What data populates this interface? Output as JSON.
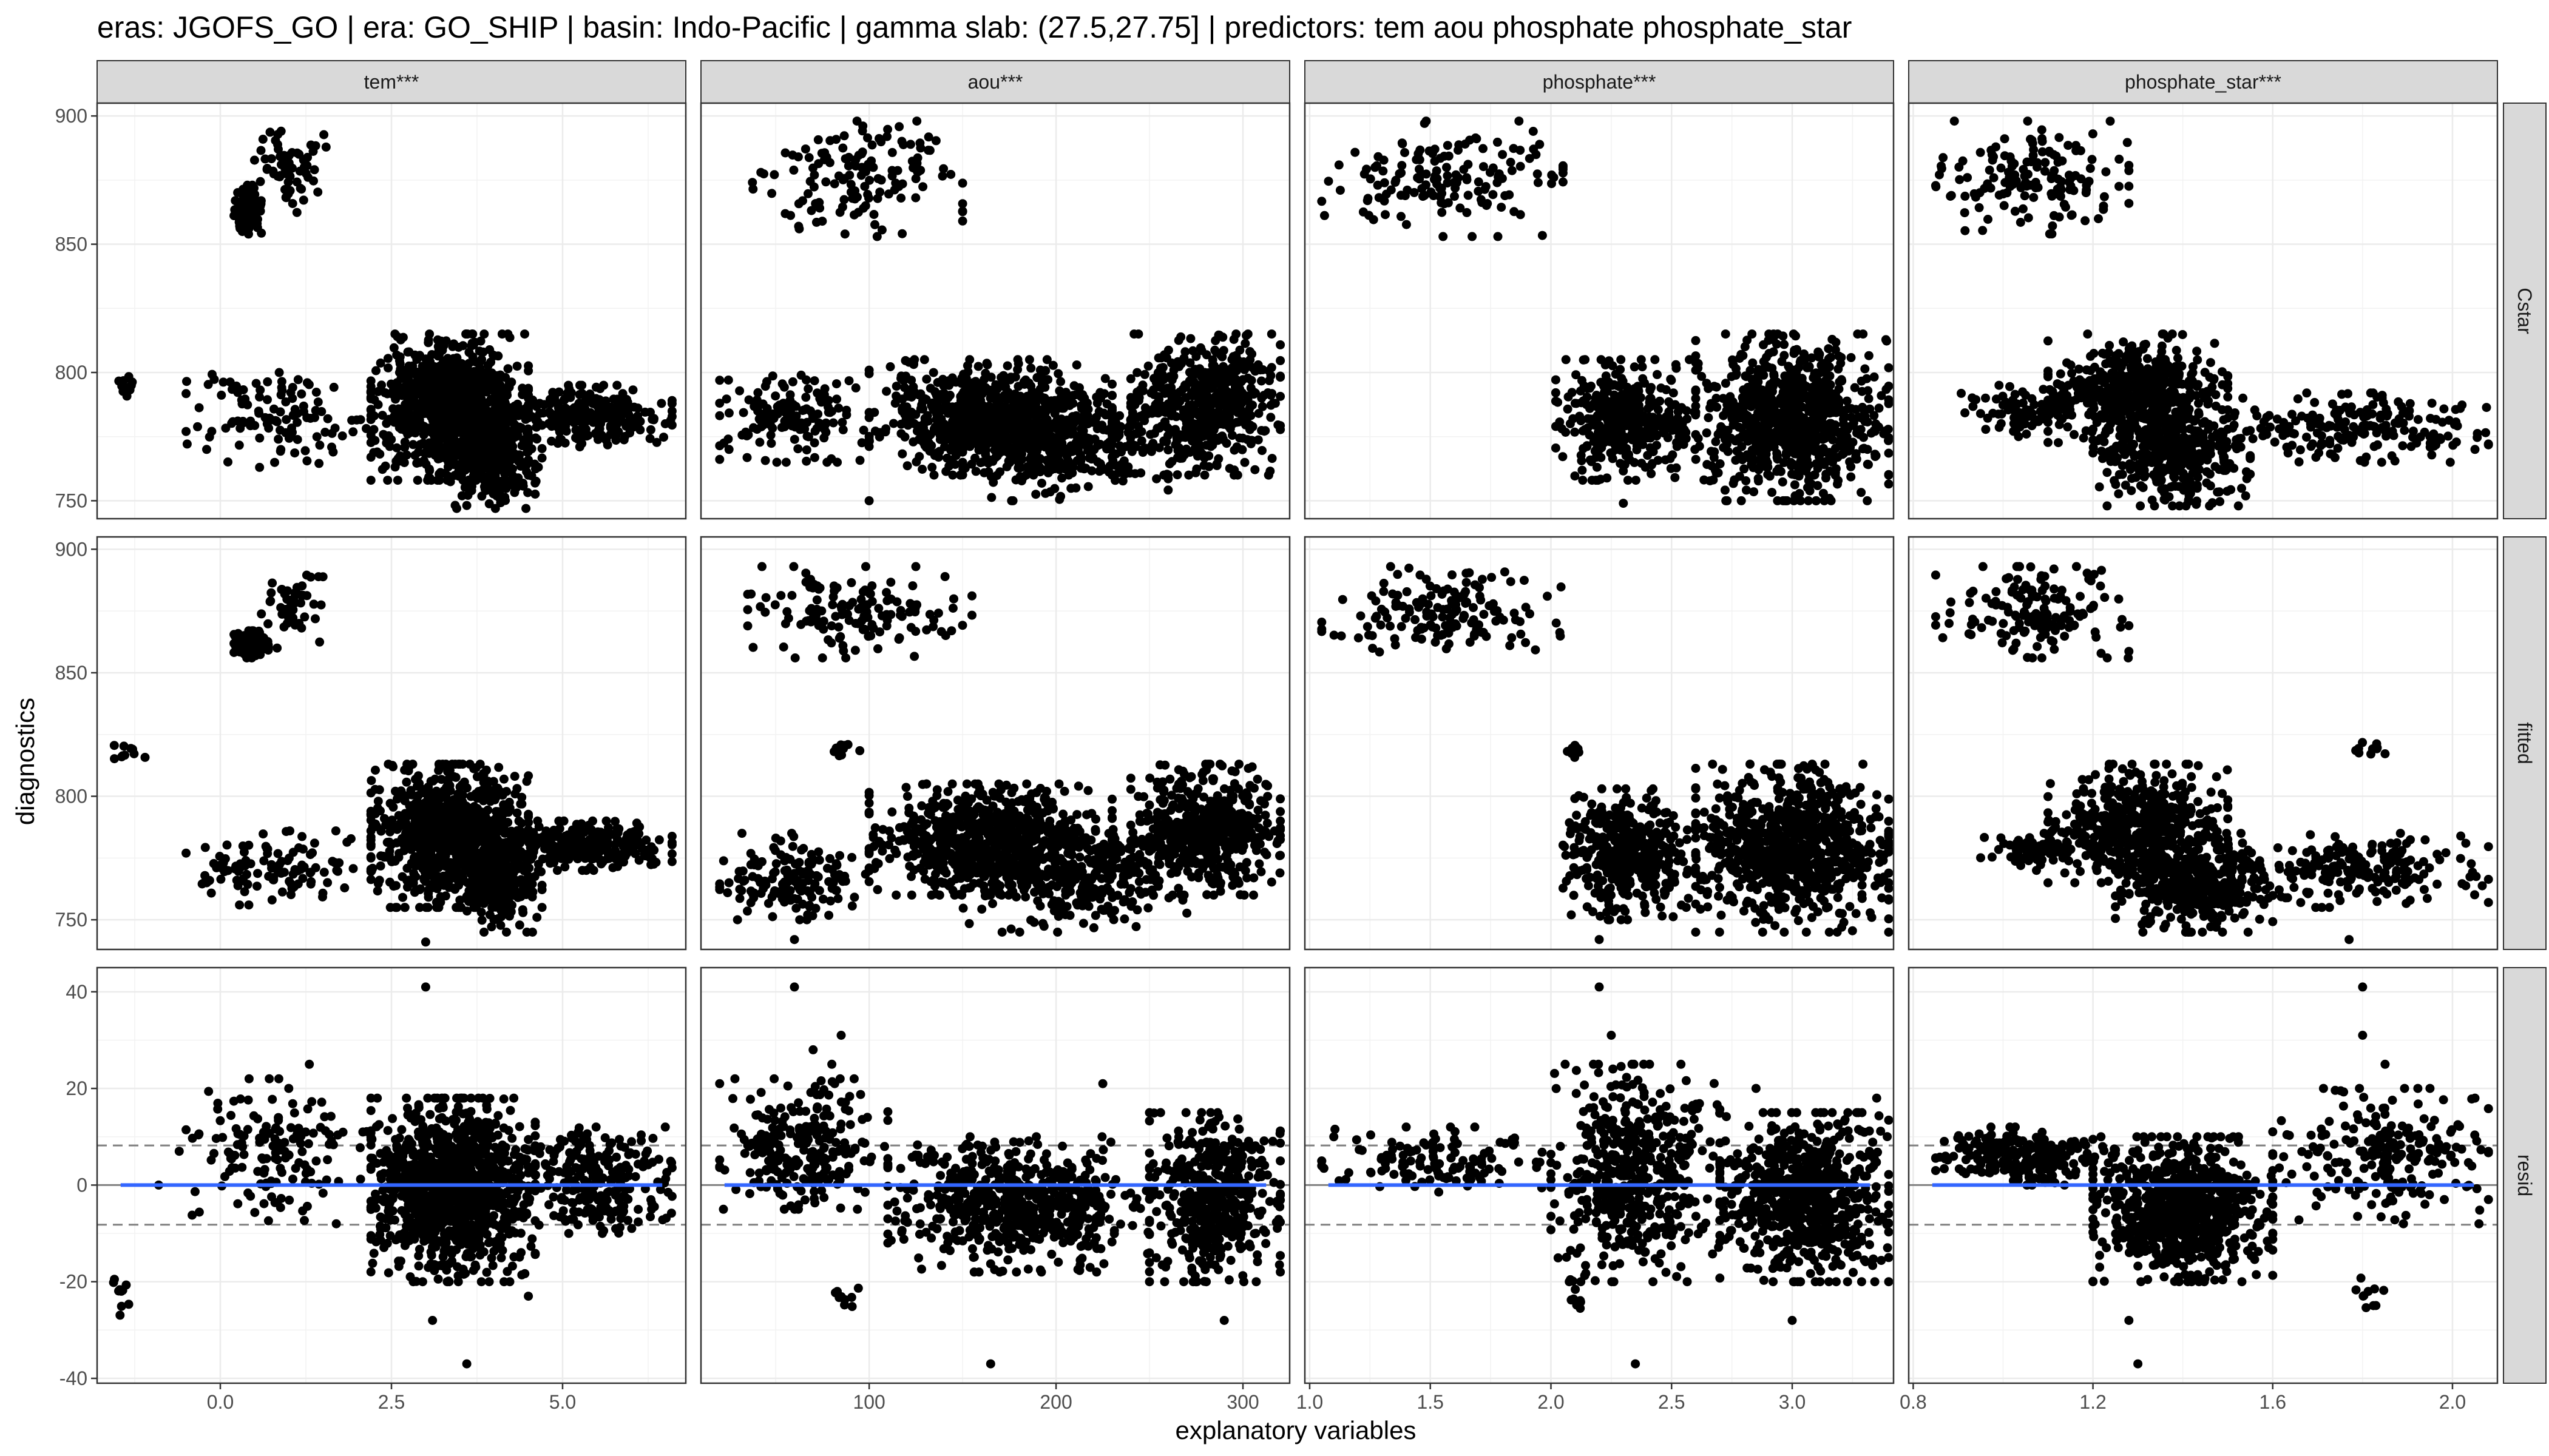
{
  "chart_data": {
    "type": "scatter",
    "title": "eras: JGOFS_GO | era: GO_SHIP | basin: Indo-Pacific | gamma slab: (27.5,27.75] | predictors: tem aou phosphate phosphate_star",
    "xlabel": "explanatory variables",
    "ylabel": "diagnostics",
    "grid": true,
    "legend": "none",
    "point_color": "#000000",
    "smooth_line_color": "#3366FF",
    "reference_line_color": "#808080",
    "columns": [
      {
        "label": "tem***",
        "xlim": [
          -1.8,
          6.8
        ],
        "ticks": [
          0.0,
          2.5,
          5.0
        ],
        "tick_labels": [
          "0.0",
          "2.5",
          "5.0"
        ]
      },
      {
        "label": "aou***",
        "xlim": [
          10,
          325
        ],
        "ticks": [
          100,
          200,
          300
        ],
        "tick_labels": [
          "100",
          "200",
          "300"
        ]
      },
      {
        "label": "phosphate***",
        "xlim": [
          0.98,
          3.42
        ],
        "ticks": [
          1.0,
          1.5,
          2.0,
          2.5,
          3.0
        ],
        "tick_labels": [
          "1.0",
          "1.5",
          "2.0",
          "2.5",
          "3.0"
        ]
      },
      {
        "label": "phosphate_star***",
        "xlim": [
          0.79,
          2.1
        ],
        "ticks": [
          0.8,
          1.2,
          1.6,
          2.0
        ],
        "tick_labels": [
          "0.8",
          "1.2",
          "1.6",
          "2.0"
        ]
      }
    ],
    "rows": [
      {
        "label": "Cstar",
        "ylim": [
          743,
          905
        ],
        "ticks": [
          750,
          800,
          850,
          900
        ],
        "tick_labels": [
          "750",
          "800",
          "850",
          "900"
        ]
      },
      {
        "label": "fitted",
        "ylim": [
          738,
          905
        ],
        "ticks": [
          750,
          800,
          850,
          900
        ],
        "tick_labels": [
          "750",
          "800",
          "850",
          "900"
        ]
      },
      {
        "label": "resid",
        "ylim": [
          -41,
          45
        ],
        "ticks": [
          -40,
          -20,
          0,
          20,
          40
        ],
        "tick_labels": [
          "-40",
          "-20",
          "0",
          "20",
          "40"
        ],
        "reference_lines": [
          -8.2,
          0,
          8.2
        ]
      }
    ],
    "panels": [
      {
        "col": "tem***",
        "row": "Cstar",
        "clusters": [
          {
            "x": [
              0.2,
              0.6
            ],
            "y": [
              853,
              873
            ],
            "n": 150
          },
          {
            "x": [
              0.5,
              1.6
            ],
            "y": [
              860,
              897
            ],
            "n": 60
          },
          {
            "x": [
              -1.6,
              -1.1
            ],
            "y": [
              790,
              799
            ],
            "n": 12
          },
          {
            "x": [
              -0.5,
              2.2
            ],
            "y": [
              763,
              800
            ],
            "n": 110
          },
          {
            "x": [
              2.2,
              4.5
            ],
            "y": [
              758,
              815
            ],
            "n": 900
          },
          {
            "x": [
              3.3,
              4.7
            ],
            "y": [
              747,
              790
            ],
            "n": 250
          },
          {
            "x": [
              4.3,
              6.6
            ],
            "y": [
              771,
              795
            ],
            "n": 260
          }
        ]
      },
      {
        "col": "aou***",
        "row": "Cstar",
        "clusters": [
          {
            "x": [
              35,
              150
            ],
            "y": [
              853,
              898
            ],
            "n": 140
          },
          {
            "x": [
              20,
              100
            ],
            "y": [
              765,
              800
            ],
            "n": 150
          },
          {
            "x": [
              100,
              230
            ],
            "y": [
              760,
              805
            ],
            "n": 700
          },
          {
            "x": [
              150,
              260
            ],
            "y": [
              750,
              790
            ],
            "n": 300
          },
          {
            "x": [
              240,
              320
            ],
            "y": [
              760,
              815
            ],
            "n": 500
          }
        ]
      },
      {
        "col": "phosphate***",
        "row": "Cstar",
        "clusters": [
          {
            "x": [
              1.05,
              2.05
            ],
            "y": [
              853,
              898
            ],
            "n": 150
          },
          {
            "x": [
              2.02,
              2.6
            ],
            "y": [
              758,
              805
            ],
            "n": 400
          },
          {
            "x": [
              2.6,
              3.4
            ],
            "y": [
              750,
              815
            ],
            "n": 800
          }
        ]
      },
      {
        "col": "phosphate_star***",
        "row": "Cstar",
        "clusters": [
          {
            "x": [
              0.85,
              1.28
            ],
            "y": [
              854,
              898
            ],
            "n": 150
          },
          {
            "x": [
              1.1,
              1.5
            ],
            "y": [
              768,
              815
            ],
            "n": 500
          },
          {
            "x": [
              1.2,
              1.55
            ],
            "y": [
              748,
              790
            ],
            "n": 400
          },
          {
            "x": [
              0.9,
              1.2
            ],
            "y": [
              775,
              795
            ],
            "n": 90
          },
          {
            "x": [
              1.5,
              2.08
            ],
            "y": [
              765,
              792
            ],
            "n": 200
          }
        ]
      },
      {
        "col": "tem***",
        "row": "fitted",
        "clusters": [
          {
            "x": [
              0.2,
              0.7
            ],
            "y": [
              856,
              867
            ],
            "n": 130
          },
          {
            "x": [
              0.6,
              1.6
            ],
            "y": [
              860,
              893
            ],
            "n": 50
          },
          {
            "x": [
              -1.6,
              -1.1
            ],
            "y": [
              815,
              822
            ],
            "n": 10
          },
          {
            "x": [
              -0.5,
              2.2
            ],
            "y": [
              756,
              786
            ],
            "n": 110
          },
          {
            "x": [
              2.2,
              4.5
            ],
            "y": [
              755,
              813
            ],
            "n": 900
          },
          {
            "x": [
              3.5,
              4.7
            ],
            "y": [
              745,
              790
            ],
            "n": 250
          },
          {
            "x": [
              4.3,
              6.6
            ],
            "y": [
              770,
              790
            ],
            "n": 260
          }
        ]
      },
      {
        "col": "aou***",
        "row": "fitted",
        "clusters": [
          {
            "x": [
              35,
              155
            ],
            "y": [
              856,
              893
            ],
            "n": 140
          },
          {
            "x": [
              80,
              95
            ],
            "y": [
              815,
              822
            ],
            "n": 10
          },
          {
            "x": [
              20,
              100
            ],
            "y": [
              750,
              785
            ],
            "n": 150
          },
          {
            "x": [
              100,
              230
            ],
            "y": [
              760,
              805
            ],
            "n": 700
          },
          {
            "x": [
              150,
              270
            ],
            "y": [
              745,
              790
            ],
            "n": 300
          },
          {
            "x": [
              240,
              320
            ],
            "y": [
              760,
              813
            ],
            "n": 500
          }
        ]
      },
      {
        "col": "phosphate***",
        "row": "fitted",
        "clusters": [
          {
            "x": [
              1.05,
              2.05
            ],
            "y": [
              856,
              893
            ],
            "n": 150
          },
          {
            "x": [
              2.05,
              2.15
            ],
            "y": [
              815,
              822
            ],
            "n": 10
          },
          {
            "x": [
              2.05,
              2.6
            ],
            "y": [
              750,
              803
            ],
            "n": 400
          },
          {
            "x": [
              2.6,
              3.4
            ],
            "y": [
              745,
              813
            ],
            "n": 800
          }
        ]
      },
      {
        "col": "phosphate_star***",
        "row": "fitted",
        "clusters": [
          {
            "x": [
              0.85,
              1.28
            ],
            "y": [
              856,
              893
            ],
            "n": 150
          },
          {
            "x": [
              1.77,
              1.85
            ],
            "y": [
              815,
              822
            ],
            "n": 10
          },
          {
            "x": [
              1.1,
              1.5
            ],
            "y": [
              765,
              813
            ],
            "n": 500
          },
          {
            "x": [
              1.25,
              1.6
            ],
            "y": [
              745,
              785
            ],
            "n": 400
          },
          {
            "x": [
              0.95,
              1.2
            ],
            "y": [
              770,
              785
            ],
            "n": 80
          },
          {
            "x": [
              1.5,
              2.08
            ],
            "y": [
              755,
              785
            ],
            "n": 200
          }
        ]
      },
      {
        "col": "tem***",
        "row": "resid",
        "clusters": [
          {
            "x": [
              -1.6,
              -1.2
            ],
            "y": [
              -28,
              -18
            ],
            "n": 10
          },
          {
            "x": [
              -0.5,
              2.2
            ],
            "y": [
              -8,
              22
            ],
            "n": 150
          },
          {
            "x": [
              2.2,
              4.6
            ],
            "y": [
              -20,
              18
            ],
            "n": 1100
          },
          {
            "x": [
              4.5,
              6.6
            ],
            "y": [
              -10,
              12
            ],
            "n": 250
          }
        ]
      },
      {
        "col": "aou***",
        "row": "resid",
        "clusters": [
          {
            "x": [
              20,
              110
            ],
            "y": [
              -5,
              22
            ],
            "n": 250
          },
          {
            "x": [
              80,
              95
            ],
            "y": [
              -28,
              -18
            ],
            "n": 10
          },
          {
            "x": [
              110,
              250
            ],
            "y": [
              -18,
              10
            ],
            "n": 600
          },
          {
            "x": [
              250,
              320
            ],
            "y": [
              -20,
              15
            ],
            "n": 450
          }
        ]
      },
      {
        "col": "phosphate***",
        "row": "resid",
        "clusters": [
          {
            "x": [
              1.05,
              2.0
            ],
            "y": [
              -2,
              12
            ],
            "n": 120
          },
          {
            "x": [
              2.07,
              2.14
            ],
            "y": [
              -28,
              -18
            ],
            "n": 10
          },
          {
            "x": [
              2.0,
              2.7
            ],
            "y": [
              -20,
              25
            ],
            "n": 500
          },
          {
            "x": [
              2.7,
              3.4
            ],
            "y": [
              -20,
              15
            ],
            "n": 700
          }
        ]
      },
      {
        "col": "phosphate_star***",
        "row": "resid",
        "clusters": [
          {
            "x": [
              0.85,
              1.25
            ],
            "y": [
              0,
              12
            ],
            "n": 250
          },
          {
            "x": [
              1.78,
              1.85
            ],
            "y": [
              -28,
              -18
            ],
            "n": 10
          },
          {
            "x": [
              1.2,
              1.6
            ],
            "y": [
              -20,
              10
            ],
            "n": 800
          },
          {
            "x": [
              1.6,
              2.08
            ],
            "y": [
              -8,
              20
            ],
            "n": 220
          }
        ]
      }
    ],
    "outliers": [
      {
        "col": "tem***",
        "row": "Cstar",
        "points": [
          [
            -1.3,
            795
          ],
          [
            -0.5,
            777
          ],
          [
            -0.2,
            770
          ],
          [
            6.5,
            780
          ]
        ]
      },
      {
        "col": "tem***",
        "row": "fitted",
        "points": [
          [
            -0.5,
            777
          ],
          [
            -0.2,
            765
          ],
          [
            3.0,
            741
          ],
          [
            1.7,
            770
          ]
        ]
      },
      {
        "col": "aou***",
        "row": "Cstar",
        "points": [
          [
            100,
            750
          ],
          [
            25,
            770
          ],
          [
            310,
            790
          ]
        ]
      },
      {
        "col": "aou***",
        "row": "fitted",
        "points": [
          [
            60,
            742
          ],
          [
            25,
            765
          ],
          [
            320,
            790
          ]
        ]
      },
      {
        "col": "phosphate***",
        "row": "Cstar",
        "points": [
          [
            2.3,
            749
          ],
          [
            3.4,
            760
          ]
        ]
      },
      {
        "col": "phosphate***",
        "row": "fitted",
        "points": [
          [
            2.2,
            742
          ],
          [
            3.4,
            758
          ]
        ]
      },
      {
        "col": "phosphate_star***",
        "row": "Cstar",
        "points": [
          [
            2.05,
            770
          ],
          [
            1.95,
            775
          ]
        ]
      },
      {
        "col": "phosphate_star***",
        "row": "fitted",
        "points": [
          [
            1.77,
            742
          ],
          [
            2.08,
            757
          ]
        ]
      },
      {
        "col": "tem***",
        "row": "resid",
        "points": [
          [
            3.0,
            41
          ],
          [
            3.6,
            -37
          ],
          [
            3.1,
            -28
          ],
          [
            4.5,
            -23
          ],
          [
            1.3,
            25
          ],
          [
            1.0,
            20
          ],
          [
            -0.6,
            7
          ],
          [
            -0.9,
            0
          ],
          [
            6.5,
            12
          ],
          [
            6.3,
            -5
          ]
        ]
      },
      {
        "col": "aou***",
        "row": "resid",
        "points": [
          [
            60,
            41
          ],
          [
            85,
            31
          ],
          [
            165,
            -37
          ],
          [
            290,
            -28
          ],
          [
            225,
            21
          ],
          [
            20,
            21
          ],
          [
            22,
            -5
          ],
          [
            70,
            28
          ],
          [
            80,
            25
          ],
          [
            320,
            5
          ]
        ]
      },
      {
        "col": "phosphate***",
        "row": "resid",
        "points": [
          [
            2.2,
            41
          ],
          [
            2.35,
            -37
          ],
          [
            3.0,
            -28
          ],
          [
            2.25,
            31
          ],
          [
            1.1,
            10
          ],
          [
            1.05,
            5
          ],
          [
            3.35,
            18
          ],
          [
            3.4,
            -15
          ],
          [
            2.85,
            20
          ]
        ]
      },
      {
        "col": "phosphate_star***",
        "row": "resid",
        "points": [
          [
            1.8,
            41
          ],
          [
            1.3,
            -37
          ],
          [
            1.8,
            31
          ],
          [
            1.28,
            -28
          ],
          [
            0.85,
            3
          ],
          [
            1.95,
            20
          ],
          [
            2.05,
            18
          ],
          [
            2.08,
            -3
          ],
          [
            1.85,
            25
          ]
        ]
      }
    ]
  }
}
